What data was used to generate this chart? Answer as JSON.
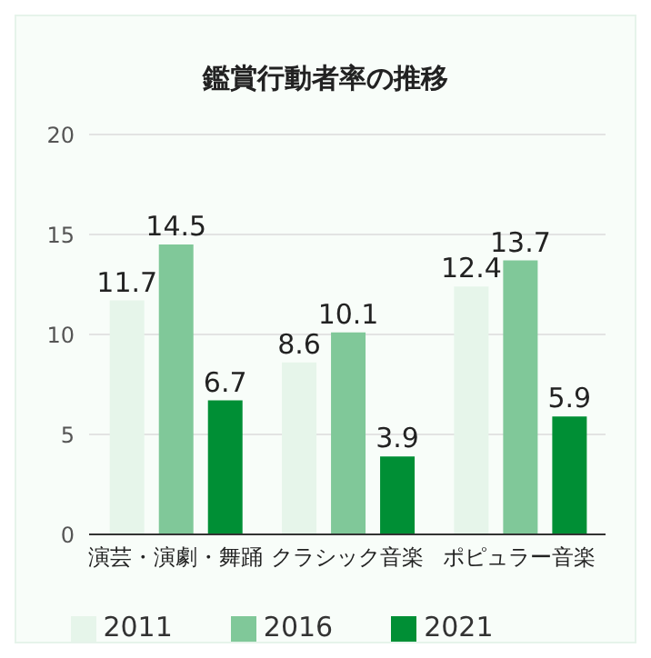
{
  "chart_data": {
    "type": "bar",
    "title": "鑑賞行動者率の推移",
    "categories": [
      "演芸・演劇・舞踊",
      "クラシック音楽",
      "ポピュラー音楽"
    ],
    "series": [
      {
        "name": "2011",
        "color": "#e6f5ea",
        "values": [
          11.7,
          8.6,
          12.4
        ]
      },
      {
        "name": "2016",
        "color": "#80c899",
        "values": [
          14.5,
          10.1,
          13.7
        ]
      },
      {
        "name": "2021",
        "color": "#008f35",
        "values": [
          6.7,
          3.9,
          5.9
        ]
      }
    ],
    "ylim": [
      0,
      20
    ],
    "yticks": [
      0,
      5,
      10,
      15,
      20
    ],
    "grid": "y",
    "legend": "bottom",
    "data_labels": true
  }
}
